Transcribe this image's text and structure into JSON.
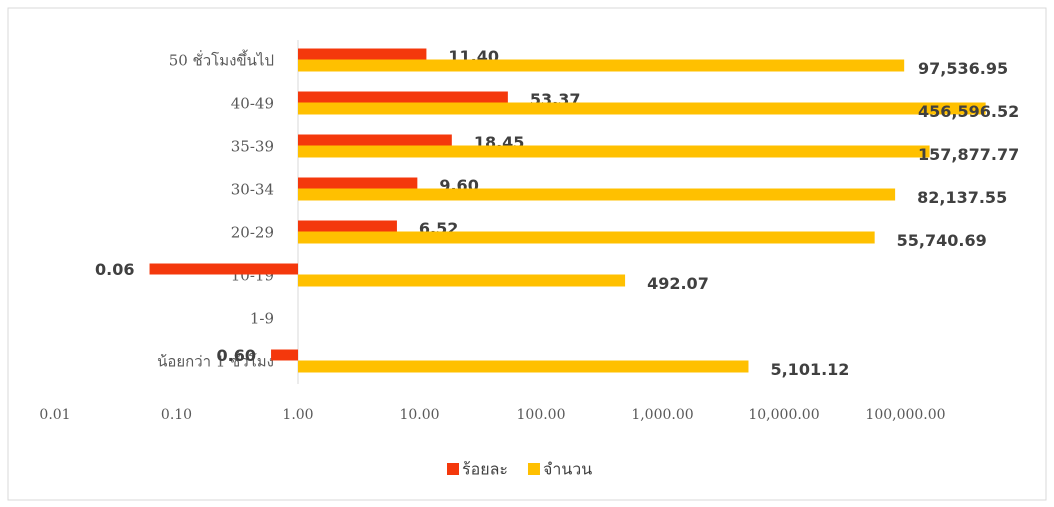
{
  "chart_data": {
    "type": "bar",
    "orientation": "horizontal",
    "x_log_scale": true,
    "categories": [
      "50 ชั่วโมงขึ้นไป",
      "40-49",
      "35-39",
      "30-34",
      "20-29",
      "10-19",
      "1-9",
      "น้อยกว่า 1 ชั่วโมง"
    ],
    "series": [
      {
        "name": "ร้อยละ",
        "color": "#f4380c",
        "values": [
          11.4,
          53.37,
          18.45,
          9.6,
          6.52,
          0.06,
          null,
          0.6
        ],
        "value_labels": [
          "11.40",
          "53.37",
          "18.45",
          "9.60",
          "6.52",
          "0.06",
          null,
          "0.60"
        ]
      },
      {
        "name": "จำนวน",
        "color": "#ffc000",
        "values": [
          97536.95,
          456596.52,
          157877.77,
          82137.55,
          55740.69,
          492.07,
          null,
          5101.12
        ],
        "value_labels": [
          "97,536.95",
          "456,596.52",
          "157,877.77",
          "82,137.55",
          "55,740.69",
          "492.07",
          null,
          "5,101.12"
        ]
      }
    ],
    "xlim": [
      0.01,
      1000000
    ],
    "xticks": [
      0.01,
      {
        "value": 0.1,
        "label": "0.10"
      },
      {
        "value": 1,
        "label": "1.00"
      },
      {
        "value": 10,
        "label": "10.00"
      },
      {
        "value": 100,
        "label": "100.00"
      },
      {
        "value": 1000,
        "label": "1,000.00"
      },
      {
        "value": 10000,
        "label": "10,000.00"
      },
      {
        "value": 100000,
        "label": "100,000.00"
      }
    ],
    "legend": "bottom"
  }
}
